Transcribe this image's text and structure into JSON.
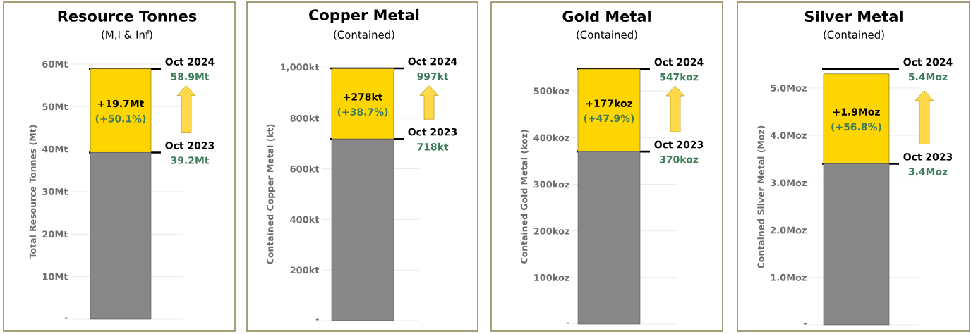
{
  "chart_data": [
    {
      "type": "bar",
      "title": "Resource Tonnes",
      "subtitle": "(M,I & Inf)",
      "ylabel": "Total Resource Tonnes (Mt)",
      "categories": [
        null
      ],
      "stacked": true,
      "tick_labels": "y",
      "grid": "y",
      "series": [
        {
          "color": "#878787",
          "values": [
            39.2
          ]
        },
        {
          "color": "#ffd500",
          "values": [
            19.7
          ],
          "value_labels": [
            "+19.7Mt"
          ]
        }
      ],
      "ylim": [
        0,
        60
      ],
      "yticks": [
        {
          "value": 0,
          "label": "-"
        },
        {
          "value": 10,
          "label": "10Mt"
        },
        {
          "value": 20,
          "label": "20Mt"
        },
        {
          "value": 30,
          "label": "30Mt"
        },
        {
          "value": 40,
          "label": "40Mt"
        },
        {
          "value": 50,
          "label": "50Mt"
        },
        {
          "value": 60,
          "label": "60Mt"
        }
      ],
      "ref_lines": [
        {
          "axis": "y",
          "value": 58.9,
          "label": "Oct 2024",
          "color": "#000000"
        },
        {
          "axis": "y",
          "value": 39.2,
          "label": "Oct 2023",
          "color": "#000000"
        }
      ],
      "annotations": [
        "(+50.1%)",
        "58.9Mt",
        "39.2Mt"
      ]
    },
    {
      "type": "bar",
      "title": "Copper Metal",
      "subtitle": "(Contained)",
      "ylabel": "Contained Copper Metal (kt)",
      "categories": [
        null
      ],
      "stacked": true,
      "tick_labels": "y",
      "grid": "y",
      "series": [
        {
          "color": "#878787",
          "values": [
            718
          ]
        },
        {
          "color": "#ffd500",
          "values": [
            278
          ],
          "value_labels": [
            "+278kt"
          ]
        }
      ],
      "ylim": [
        0,
        1000
      ],
      "yticks": [
        {
          "value": 0,
          "label": "-"
        },
        {
          "value": 200,
          "label": "200kt"
        },
        {
          "value": 400,
          "label": "400kt"
        },
        {
          "value": 600,
          "label": "600kt"
        },
        {
          "value": 800,
          "label": "800kt"
        },
        {
          "value": 1000,
          "label": "1,000kt"
        }
      ],
      "ref_lines": [
        {
          "axis": "y",
          "value": 997,
          "label": "Oct 2024",
          "color": "#000000"
        },
        {
          "axis": "y",
          "value": 718,
          "label": "Oct 2023",
          "color": "#000000"
        }
      ],
      "annotations": [
        "(+38.7%)",
        "997kt",
        "718kt"
      ]
    },
    {
      "type": "bar",
      "title": "Gold Metal",
      "subtitle": "(Contained)",
      "ylabel": "Contained Gold Metal (koz)",
      "categories": [
        null
      ],
      "stacked": true,
      "tick_labels": "y",
      "grid": "y",
      "series": [
        {
          "color": "#878787",
          "values": [
            370
          ]
        },
        {
          "color": "#ffd500",
          "values": [
            177
          ],
          "value_labels": [
            "+177koz"
          ]
        }
      ],
      "ylim": [
        0,
        547
      ],
      "yticks": [
        {
          "value": 0,
          "label": "-"
        },
        {
          "value": 100,
          "label": "100koz"
        },
        {
          "value": 200,
          "label": "200koz"
        },
        {
          "value": 300,
          "label": "300koz"
        },
        {
          "value": 400,
          "label": "400koz"
        },
        {
          "value": 500,
          "label": "500koz"
        }
      ],
      "ref_lines": [
        {
          "axis": "y",
          "value": 547,
          "label": "Oct 2024",
          "color": "#000000"
        },
        {
          "axis": "y",
          "value": 370,
          "label": "Oct 2023",
          "color": "#000000"
        }
      ],
      "annotations": [
        "(+47.9%)",
        "547koz",
        "370koz"
      ]
    },
    {
      "type": "bar",
      "title": "Silver Metal",
      "subtitle": "(Contained)",
      "ylabel": "Contained Silver Metal (Moz)",
      "categories": [
        null
      ],
      "stacked": true,
      "tick_labels": "y",
      "grid": "y",
      "series": [
        {
          "color": "#878787",
          "values": [
            3.4
          ]
        },
        {
          "color": "#ffd500",
          "values": [
            1.9
          ],
          "value_labels": [
            "+1.9Moz"
          ]
        }
      ],
      "ylim": [
        0,
        5.4
      ],
      "yticks": [
        {
          "value": 0,
          "label": "-"
        },
        {
          "value": 1,
          "label": "1.0Moz"
        },
        {
          "value": 2,
          "label": "2.0Moz"
        },
        {
          "value": 3,
          "label": "3.0Moz"
        },
        {
          "value": 4,
          "label": "4.0Moz"
        },
        {
          "value": 5,
          "label": "5.0Moz"
        }
      ],
      "ref_lines": [
        {
          "axis": "y",
          "value": 5.4,
          "label": "Oct 2024",
          "color": "#000000"
        },
        {
          "axis": "y",
          "value": 3.4,
          "label": "Oct 2023",
          "color": "#000000"
        }
      ],
      "annotations": [
        "(+56.8%)",
        "5.4Moz",
        "3.4Moz"
      ]
    }
  ]
}
